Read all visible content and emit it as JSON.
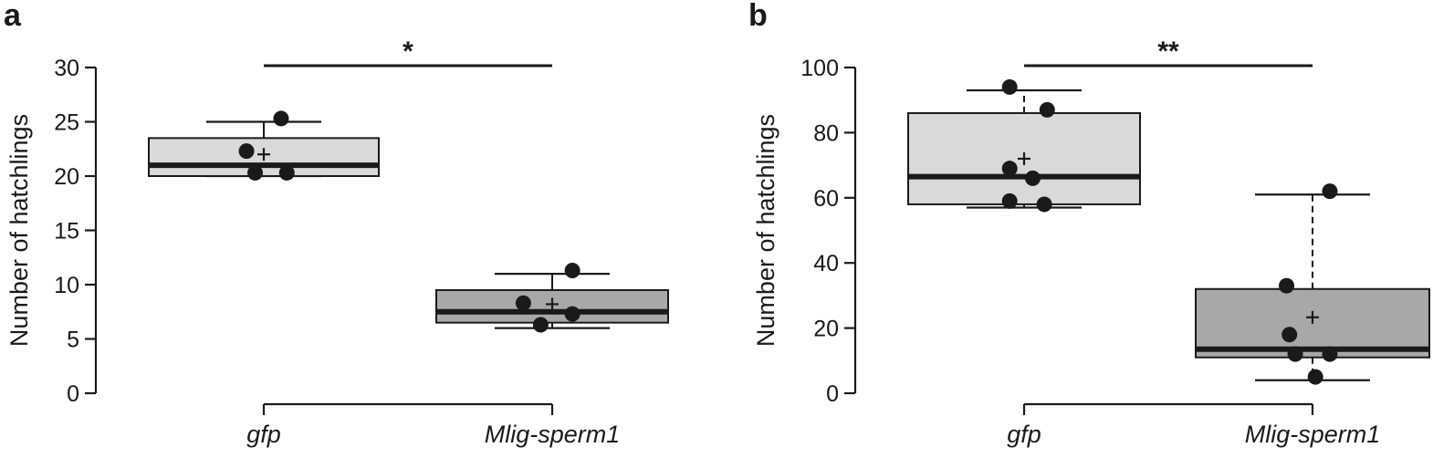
{
  "chart_data": [
    {
      "type": "box",
      "panel_label": "a",
      "ylabel": "Number of hatchlings",
      "ylim": [
        0,
        30
      ],
      "yticks": [
        0,
        5,
        10,
        15,
        20,
        25,
        30
      ],
      "categories": [
        "gfp",
        "Mlig-sperm1"
      ],
      "significance": "*",
      "boxes": [
        {
          "category": "gfp",
          "fill": "#d9d9d9",
          "q1": 20,
          "median": 21,
          "q3": 23.5,
          "whisker_low": 20,
          "whisker_high": 25,
          "mean": 22,
          "points": [
            [
              -0.06,
              22.3
            ],
            [
              0.06,
              25.3
            ],
            [
              -0.03,
              20.3
            ],
            [
              0.08,
              20.3
            ]
          ]
        },
        {
          "category": "Mlig-sperm1",
          "fill": "#a8a8a8",
          "q1": 6.5,
          "median": 7.5,
          "q3": 9.5,
          "whisker_low": 6,
          "whisker_high": 11,
          "mean": 8.2,
          "points": [
            [
              -0.1,
              8.3
            ],
            [
              0.07,
              11.3
            ],
            [
              -0.04,
              6.3
            ],
            [
              0.07,
              7.3
            ]
          ]
        }
      ]
    },
    {
      "type": "box",
      "panel_label": "b",
      "ylabel": "Number of hatchlings",
      "ylim": [
        0,
        100
      ],
      "yticks": [
        0,
        20,
        40,
        60,
        80,
        100
      ],
      "categories": [
        "gfp",
        "Mlig-sperm1"
      ],
      "significance": "**",
      "boxes": [
        {
          "category": "gfp",
          "fill": "#d9d9d9",
          "q1": 58,
          "median": 66.5,
          "q3": 86,
          "whisker_low": 57,
          "whisker_high": 93,
          "mean": 72,
          "points": [
            [
              -0.05,
              94
            ],
            [
              0.08,
              87
            ],
            [
              -0.05,
              69
            ],
            [
              0.03,
              66
            ],
            [
              -0.05,
              59
            ],
            [
              0.07,
              58
            ]
          ]
        },
        {
          "category": "Mlig-sperm1",
          "fill": "#a8a8a8",
          "q1": 11,
          "median": 13.5,
          "q3": 32,
          "whisker_low": 4,
          "whisker_high": 61,
          "mean": 23.3,
          "points": [
            [
              0.06,
              62
            ],
            [
              -0.09,
              33
            ],
            [
              -0.08,
              18
            ],
            [
              -0.06,
              12
            ],
            [
              0.06,
              12
            ],
            [
              0.01,
              5
            ]
          ]
        }
      ]
    }
  ]
}
